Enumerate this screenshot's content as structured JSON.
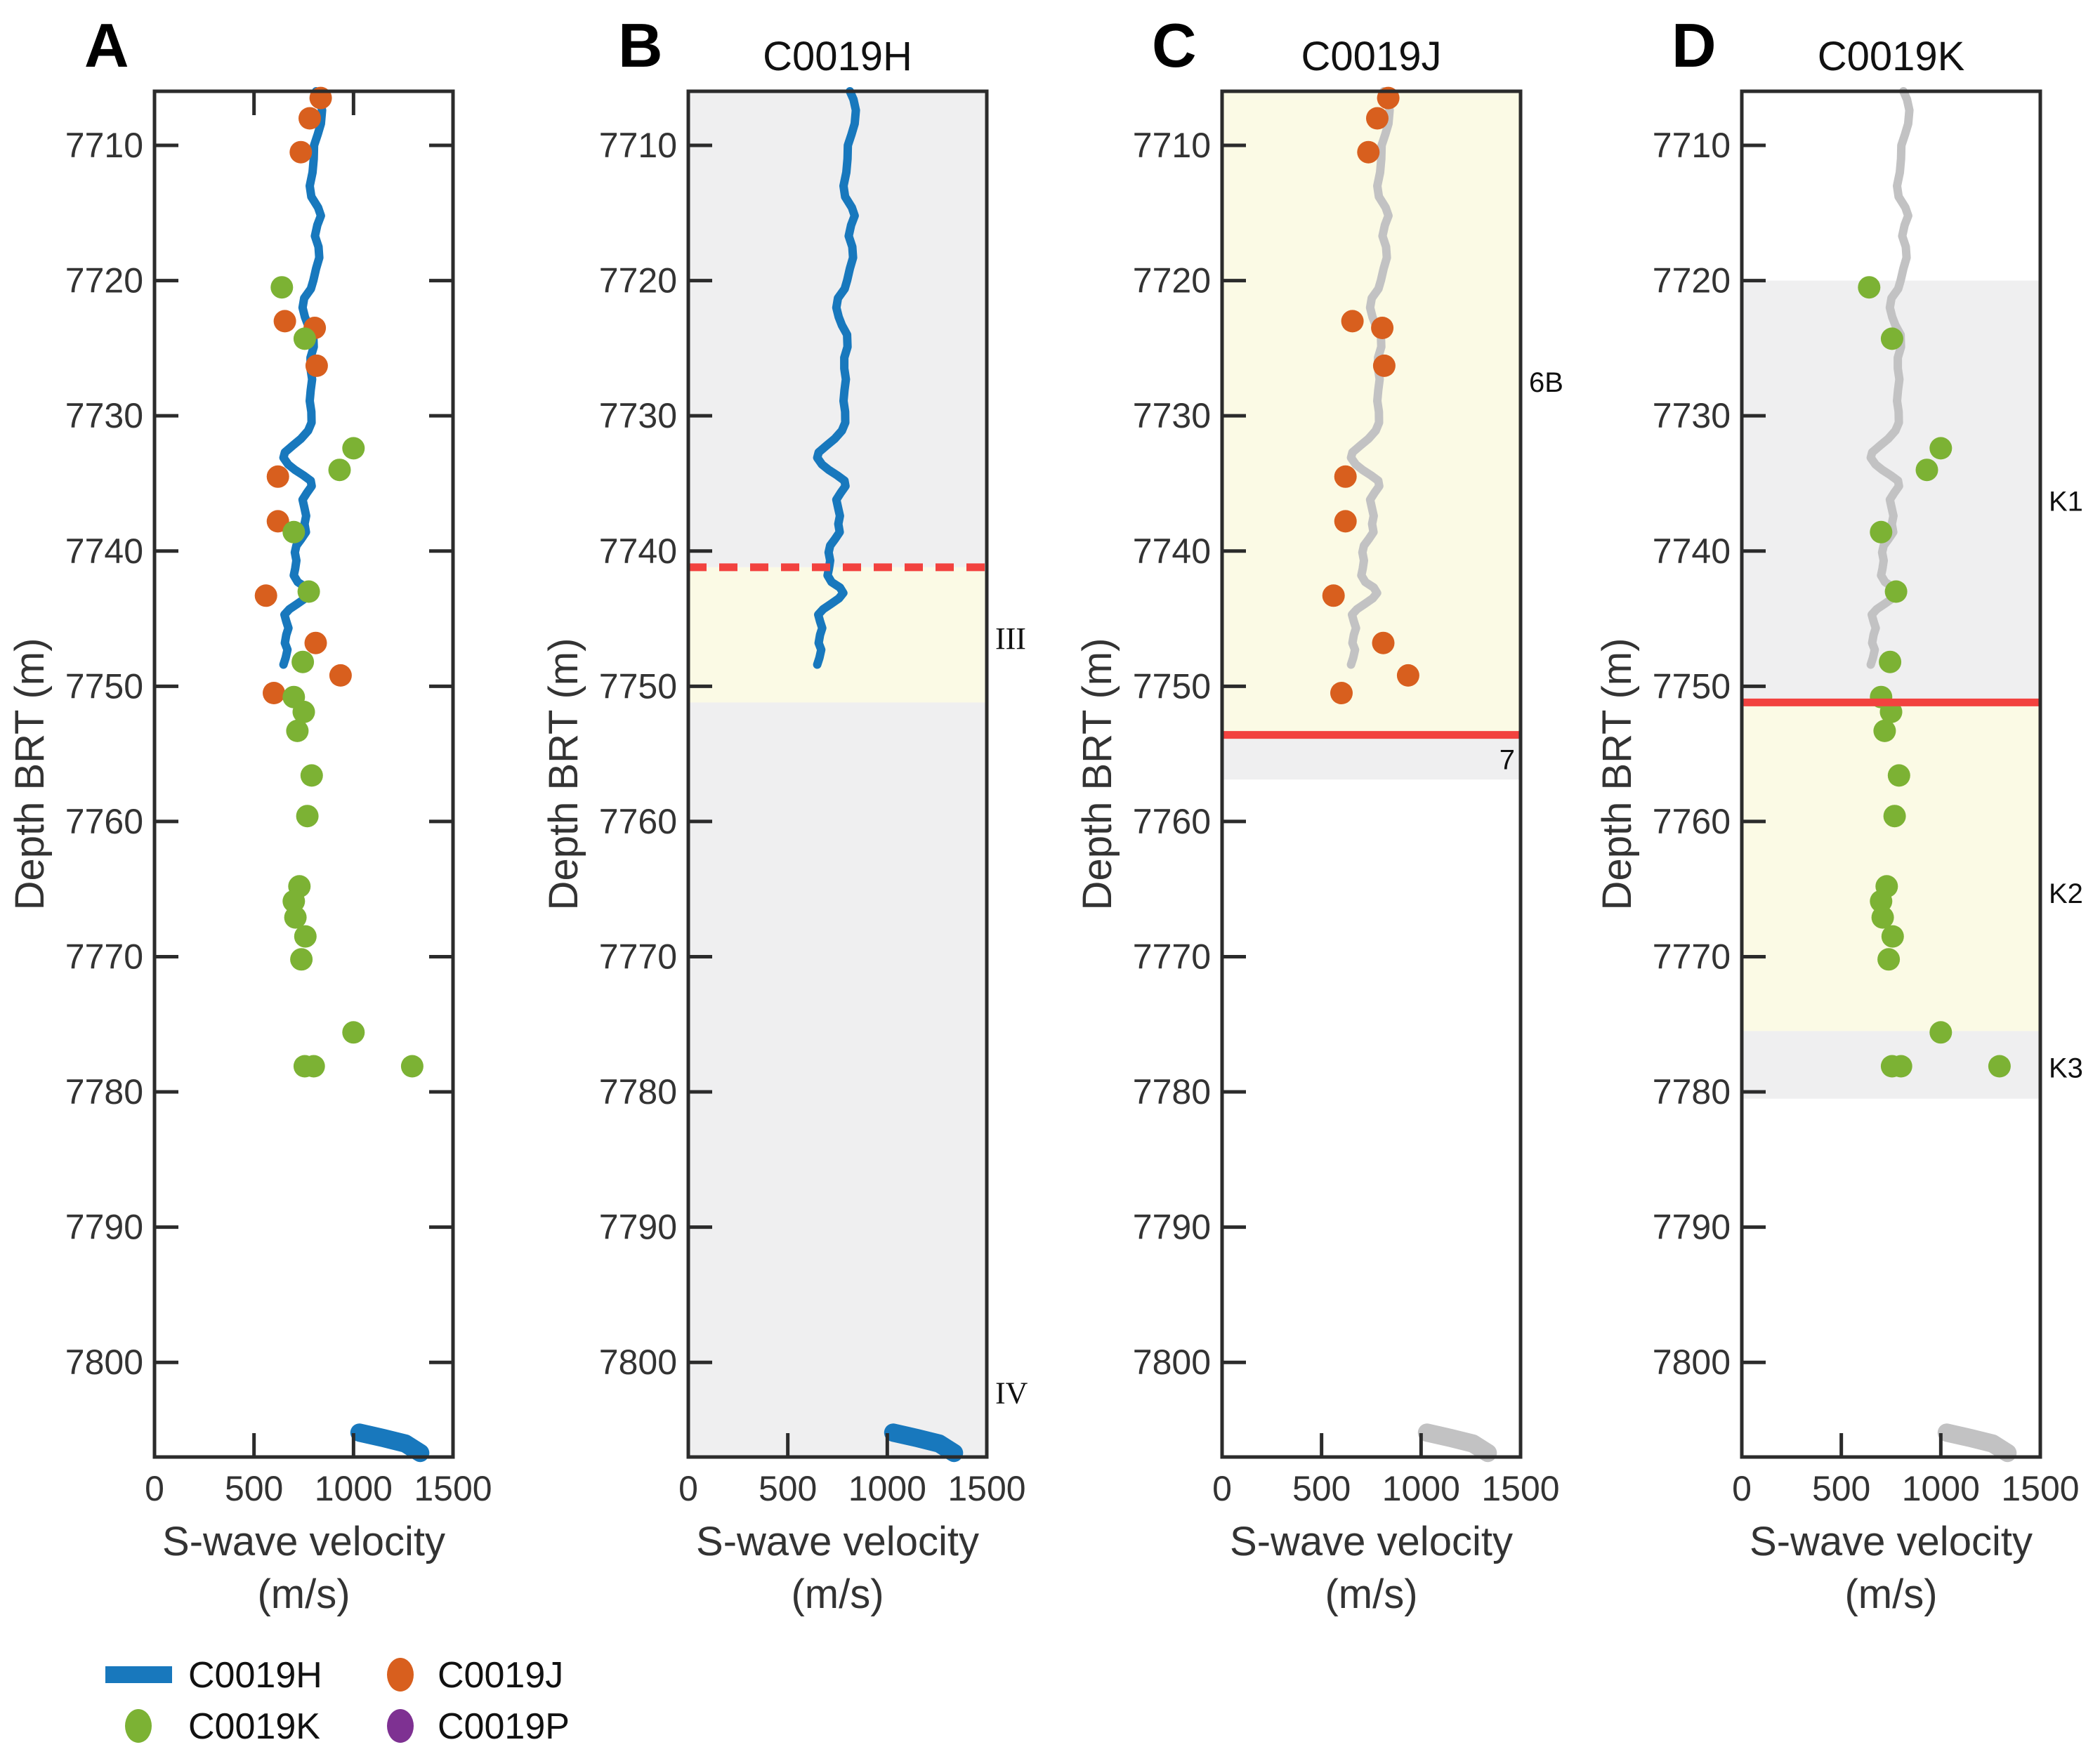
{
  "colors": {
    "blue": "#1878bd",
    "orange": "#d85f1e",
    "green": "#7cb234",
    "purple": "#7e3192",
    "red": "#f2423f",
    "zone_gray": "#efeff0",
    "zone_yellow": "#fbfae5",
    "gray_line": "#c2c2c3",
    "axis": "#2b2b2b",
    "tick_text": "#333333",
    "title_text": "#111111"
  },
  "axis": {
    "ylabel": "Depth BRT (m)",
    "xlabel_line1": "S-wave velocity",
    "xlabel_line2": "(m/s)",
    "xticks": [
      0,
      500,
      1000,
      1500
    ],
    "yticks": [
      7710,
      7720,
      7730,
      7740,
      7750,
      7760,
      7770,
      7780,
      7790,
      7800
    ],
    "xlim": [
      0,
      1500
    ],
    "depth_top": 7706,
    "depth_bottom": 7807
  },
  "legend": {
    "items": [
      {
        "label": "C0019H",
        "marker": "line",
        "color_key": "blue"
      },
      {
        "label": "C0019J",
        "marker": "dot",
        "color_key": "orange"
      },
      {
        "label": "C0019K",
        "marker": "dot",
        "color_key": "green"
      },
      {
        "label": "C0019P",
        "marker": "dot",
        "color_key": "purple"
      }
    ]
  },
  "chart_data": {
    "type": "line+scatter",
    "xlabel": "S-wave velocity (m/s)",
    "ylabel": "Depth BRT (m)",
    "shared_series": {
      "c0019h_log": [
        [
          812,
          7706.0
        ],
        [
          830,
          7706.6
        ],
        [
          842,
          7707.4
        ],
        [
          836,
          7708.4
        ],
        [
          820,
          7709.2
        ],
        [
          802,
          7710.0
        ],
        [
          800,
          7711.0
        ],
        [
          794,
          7712.0
        ],
        [
          780,
          7713.0
        ],
        [
          788,
          7713.8
        ],
        [
          822,
          7714.6
        ],
        [
          836,
          7715.2
        ],
        [
          818,
          7715.9
        ],
        [
          806,
          7716.7
        ],
        [
          824,
          7717.5
        ],
        [
          828,
          7718.3
        ],
        [
          812,
          7719.1
        ],
        [
          798,
          7720.0
        ],
        [
          786,
          7720.6
        ],
        [
          752,
          7721.3
        ],
        [
          744,
          7722.0
        ],
        [
          756,
          7722.7
        ],
        [
          772,
          7723.3
        ],
        [
          798,
          7724.0
        ],
        [
          800,
          7724.9
        ],
        [
          784,
          7725.7
        ],
        [
          784,
          7726.5
        ],
        [
          792,
          7727.3
        ],
        [
          785,
          7728.1
        ],
        [
          780,
          7728.9
        ],
        [
          788,
          7729.7
        ],
        [
          789,
          7730.5
        ],
        [
          772,
          7731.1
        ],
        [
          736,
          7731.7
        ],
        [
          695,
          7732.2
        ],
        [
          655,
          7732.7
        ],
        [
          648,
          7733.1
        ],
        [
          672,
          7733.6
        ],
        [
          706,
          7734.0
        ],
        [
          748,
          7734.4
        ],
        [
          785,
          7734.8
        ],
        [
          790,
          7735.2
        ],
        [
          766,
          7735.7
        ],
        [
          744,
          7736.2
        ],
        [
          753,
          7736.8
        ],
        [
          762,
          7737.4
        ],
        [
          754,
          7738.0
        ],
        [
          761,
          7738.6
        ],
        [
          738,
          7739.1
        ],
        [
          713,
          7739.6
        ],
        [
          705,
          7740.1
        ],
        [
          713,
          7740.7
        ],
        [
          707,
          7741.3
        ],
        [
          700,
          7741.8
        ],
        [
          720,
          7742.3
        ],
        [
          762,
          7742.7
        ],
        [
          779,
          7743.1
        ],
        [
          757,
          7743.5
        ],
        [
          718,
          7743.9
        ],
        [
          678,
          7744.3
        ],
        [
          653,
          7744.7
        ],
        [
          662,
          7745.2
        ],
        [
          673,
          7745.7
        ],
        [
          662,
          7746.2
        ],
        [
          655,
          7746.8
        ],
        [
          668,
          7747.3
        ],
        [
          659,
          7747.9
        ],
        [
          648,
          7748.4
        ]
      ],
      "c0019h_deep": [
        [
          1030,
          7805.2
        ],
        [
          1150,
          7805.6
        ],
        [
          1260,
          7806.0
        ],
        [
          1335,
          7806.7
        ]
      ],
      "c0019j_obs": [
        [
          835,
          7706.5
        ],
        [
          780,
          7708.0
        ],
        [
          735,
          7710.5
        ],
        [
          655,
          7723.0
        ],
        [
          805,
          7723.5
        ],
        [
          815,
          7726.3
        ],
        [
          620,
          7734.5
        ],
        [
          620,
          7737.8
        ],
        [
          560,
          7743.3
        ],
        [
          810,
          7746.8
        ],
        [
          935,
          7749.2
        ],
        [
          600,
          7750.5
        ]
      ],
      "c0019k_obs": [
        [
          640,
          7720.5
        ],
        [
          755,
          7724.3
        ],
        [
          1000,
          7732.4
        ],
        [
          930,
          7734.0
        ],
        [
          700,
          7738.6
        ],
        [
          775,
          7743.0
        ],
        [
          745,
          7748.2
        ],
        [
          700,
          7750.8
        ],
        [
          750,
          7751.9
        ],
        [
          718,
          7753.3
        ],
        [
          790,
          7756.6
        ],
        [
          768,
          7759.6
        ],
        [
          728,
          7764.8
        ],
        [
          700,
          7765.9
        ],
        [
          708,
          7767.1
        ],
        [
          758,
          7768.5
        ],
        [
          738,
          7770.2
        ],
        [
          1000,
          7775.6
        ],
        [
          755,
          7778.1
        ],
        [
          800,
          7778.1
        ],
        [
          1295,
          7778.1
        ]
      ]
    },
    "panels": [
      {
        "letter": "A",
        "title": "",
        "full_box_ticks": true,
        "zones": [],
        "hlines": [],
        "zone_labels": [],
        "series": [
          {
            "ref": "c0019h_log",
            "style": "line",
            "color_key": "blue",
            "width": 12
          },
          {
            "ref": "c0019h_deep",
            "style": "line",
            "color_key": "blue",
            "width": 26
          },
          {
            "ref": "c0019j_obs",
            "style": "scatter",
            "color_key": "orange"
          },
          {
            "ref": "c0019k_obs",
            "style": "scatter",
            "color_key": "green"
          }
        ]
      },
      {
        "letter": "B",
        "title": "C0019H",
        "full_box_ticks": false,
        "zones": [
          {
            "from": 7706.0,
            "to": 7741.2,
            "color_key": "zone_gray"
          },
          {
            "from": 7741.2,
            "to": 7751.2,
            "color_key": "zone_yellow"
          },
          {
            "from": 7751.2,
            "to": 7807.0,
            "color_key": "zone_gray"
          }
        ],
        "hlines": [
          {
            "depth": 7741.2,
            "style": "dotted",
            "color_key": "red"
          }
        ],
        "zone_labels": [
          {
            "text": "III",
            "depth": 7746.5,
            "font": "serif",
            "side": "out"
          },
          {
            "text": "IV",
            "depth": 7802.3,
            "font": "serif",
            "side": "out"
          }
        ],
        "series": [
          {
            "ref": "c0019h_log",
            "style": "line",
            "color_key": "blue",
            "width": 12
          },
          {
            "ref": "c0019h_deep",
            "style": "line",
            "color_key": "blue",
            "width": 26
          }
        ]
      },
      {
        "letter": "C",
        "title": "C0019J",
        "full_box_ticks": false,
        "zones": [
          {
            "from": 7706.0,
            "to": 7753.6,
            "color_key": "zone_yellow"
          },
          {
            "from": 7753.6,
            "to": 7756.9,
            "color_key": "zone_gray"
          }
        ],
        "hlines": [
          {
            "depth": 7753.6,
            "style": "solid",
            "color_key": "red"
          }
        ],
        "zone_labels": [
          {
            "text": "6B",
            "depth": 7727.5,
            "font": "sans",
            "side": "out"
          },
          {
            "text": "7",
            "depth": 7755.4,
            "font": "sans",
            "side": "in"
          }
        ],
        "series": [
          {
            "ref": "c0019h_log",
            "style": "line",
            "color_key": "gray_line",
            "width": 12
          },
          {
            "ref": "c0019h_deep",
            "style": "line",
            "color_key": "gray_line",
            "width": 26
          },
          {
            "ref": "c0019j_obs",
            "style": "scatter",
            "color_key": "orange"
          }
        ]
      },
      {
        "letter": "D",
        "title": "C0019K",
        "full_box_ticks": false,
        "zones": [
          {
            "from": 7720.0,
            "to": 7751.2,
            "color_key": "zone_gray"
          },
          {
            "from": 7751.2,
            "to": 7775.5,
            "color_key": "zone_yellow"
          },
          {
            "from": 7775.5,
            "to": 7780.5,
            "color_key": "zone_gray"
          }
        ],
        "hlines": [
          {
            "depth": 7751.2,
            "style": "solid",
            "color_key": "red"
          }
        ],
        "zone_labels": [
          {
            "text": "K1",
            "depth": 7736.3,
            "font": "sans",
            "side": "out"
          },
          {
            "text": "K2",
            "depth": 7765.3,
            "font": "sans",
            "side": "out"
          },
          {
            "text": "K3",
            "depth": 7778.2,
            "font": "sans",
            "side": "out"
          }
        ],
        "series": [
          {
            "ref": "c0019h_log",
            "style": "line",
            "color_key": "gray_line",
            "width": 12
          },
          {
            "ref": "c0019h_deep",
            "style": "line",
            "color_key": "gray_line",
            "width": 26
          },
          {
            "ref": "c0019k_obs",
            "style": "scatter",
            "color_key": "green"
          }
        ]
      }
    ]
  }
}
